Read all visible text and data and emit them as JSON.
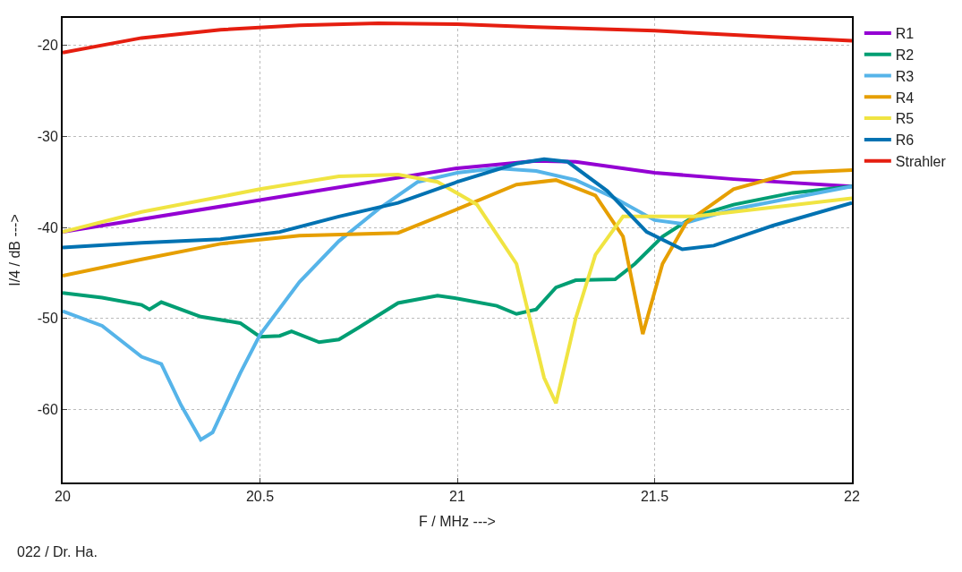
{
  "chart_data": {
    "type": "line",
    "xlabel": "F / MHz --->",
    "ylabel": "I/4 / dB --->",
    "xlim": [
      20,
      22
    ],
    "xticks": [
      20,
      20.5,
      21,
      21.5,
      22
    ],
    "ylim": [
      -68,
      -17
    ],
    "yticks": [
      -20,
      -30,
      -40,
      -50,
      -60
    ],
    "grid": true,
    "legend": "right",
    "marker": "none",
    "line_style": "solid",
    "annotations": [
      "022 / Dr. Ha."
    ],
    "series": [
      {
        "name": "R1",
        "color": "#9400d3",
        "x": [
          20,
          20.5,
          21,
          21.2,
          21.3,
          21.5,
          21.7,
          22
        ],
        "values": [
          -40.5,
          -37,
          -33.5,
          -32.7,
          -32.8,
          -34,
          -34.7,
          -35.5
        ]
      },
      {
        "name": "R2",
        "color": "#009e73",
        "x": [
          20,
          20.1,
          20.2,
          20.22,
          20.25,
          20.35,
          20.45,
          20.5,
          20.55,
          20.58,
          20.65,
          20.7,
          20.75,
          20.85,
          20.95,
          21,
          21.1,
          21.15,
          21.2,
          21.25,
          21.3,
          21.4,
          21.45,
          21.52,
          21.6,
          21.7,
          21.85,
          22
        ],
        "values": [
          -47.2,
          -47.7,
          -48.5,
          -49,
          -48.2,
          -49.8,
          -50.5,
          -52,
          -51.9,
          -51.4,
          -52.6,
          -52.3,
          -51,
          -48.3,
          -47.5,
          -47.8,
          -48.6,
          -49.5,
          -49,
          -46.6,
          -45.8,
          -45.7,
          -44,
          -41,
          -38.8,
          -37.5,
          -36.2,
          -35.5
        ]
      },
      {
        "name": "R3",
        "color": "#56b4e9",
        "x": [
          20,
          20.1,
          20.2,
          20.25,
          20.3,
          20.35,
          20.38,
          20.45,
          20.5,
          20.6,
          20.7,
          20.8,
          20.9,
          21,
          21.1,
          21.2,
          21.3,
          21.4,
          21.5,
          21.57,
          21.7,
          22
        ],
        "values": [
          -49.2,
          -50.8,
          -54.2,
          -55,
          -59.5,
          -63.3,
          -62.5,
          -56,
          -51.8,
          -46,
          -41.5,
          -38,
          -35,
          -34,
          -33.5,
          -33.8,
          -34.8,
          -36.8,
          -39.2,
          -39.6,
          -38,
          -35.5
        ]
      },
      {
        "name": "R4",
        "color": "#e69f00",
        "x": [
          20,
          20.2,
          20.4,
          20.6,
          20.85,
          21,
          21.15,
          21.25,
          21.35,
          21.42,
          21.47,
          21.52,
          21.58,
          21.7,
          21.85,
          22
        ],
        "values": [
          -45.3,
          -43.5,
          -41.8,
          -40.9,
          -40.6,
          -38,
          -35.3,
          -34.8,
          -36.5,
          -41,
          -51.7,
          -44,
          -39.5,
          -35.8,
          -34,
          -33.7
        ]
      },
      {
        "name": "R5",
        "color": "#f0e442",
        "x": [
          20,
          20.2,
          20.5,
          20.7,
          20.85,
          20.95,
          21.05,
          21.15,
          21.22,
          21.25,
          21.3,
          21.35,
          21.42,
          21.6,
          22
        ],
        "values": [
          -40.5,
          -38.3,
          -35.8,
          -34.4,
          -34.2,
          -35,
          -37.5,
          -44,
          -56.5,
          -59.3,
          -50,
          -43,
          -38.8,
          -38.8,
          -36.8
        ]
      },
      {
        "name": "R6",
        "color": "#0072b2",
        "x": [
          20,
          20.2,
          20.4,
          20.55,
          20.7,
          20.85,
          21,
          21.15,
          21.22,
          21.28,
          21.38,
          21.48,
          21.57,
          21.65,
          21.8,
          22
        ],
        "values": [
          -42.2,
          -41.7,
          -41.3,
          -40.5,
          -38.8,
          -37.3,
          -35,
          -33,
          -32.5,
          -32.8,
          -36,
          -40.5,
          -42.4,
          -42,
          -39.8,
          -37.3
        ]
      },
      {
        "name": "Strahler",
        "color": "#e51e10",
        "x": [
          20,
          20.2,
          20.4,
          20.6,
          20.8,
          21,
          21.2,
          21.5,
          21.8,
          22
        ],
        "values": [
          -20.8,
          -19.2,
          -18.3,
          -17.8,
          -17.6,
          -17.7,
          -18.0,
          -18.4,
          -19.1,
          -19.5
        ]
      }
    ]
  }
}
